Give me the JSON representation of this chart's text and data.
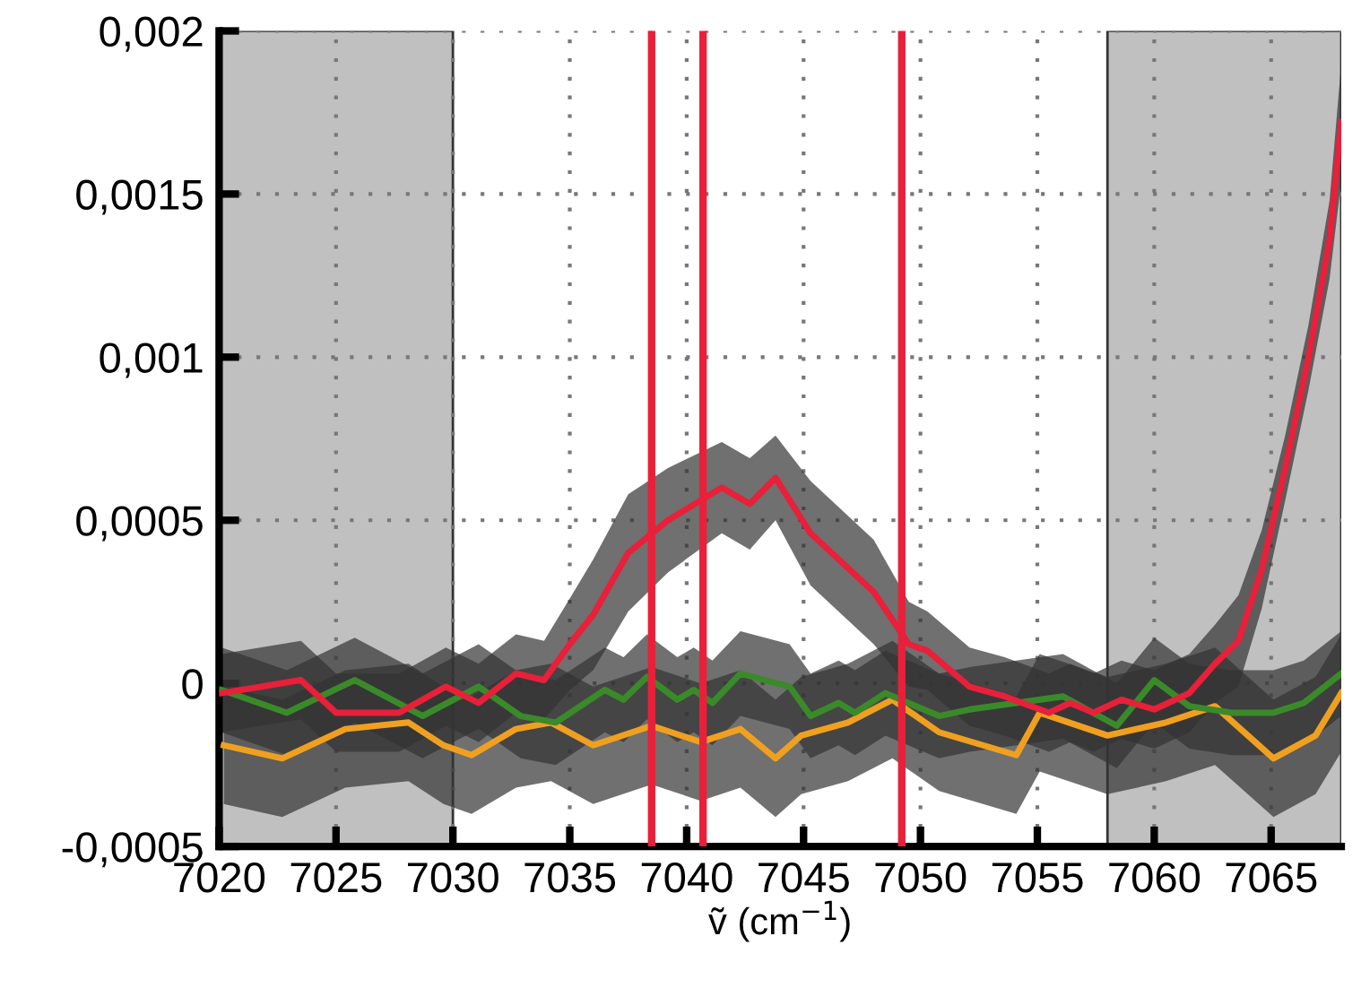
{
  "chart_data": {
    "type": "line",
    "xlabel": "ṽ (cm$^{−1}$)",
    "xlim": [
      7020,
      7068
    ],
    "ylim": [
      -0.0005,
      0.002
    ],
    "xticks": [
      7020,
      7025,
      7030,
      7035,
      7040,
      7045,
      7050,
      7055,
      7060,
      7065
    ],
    "yticks": [
      {
        "value": -0.0005,
        "label": "-0,0005"
      },
      {
        "value": 0,
        "label": "0"
      },
      {
        "value": 0.0005,
        "label": "0,0005"
      },
      {
        "value": 0.001,
        "label": "0,001"
      },
      {
        "value": 0.0015,
        "label": "0,0015"
      },
      {
        "value": 0.002,
        "label": "0,002"
      }
    ],
    "grid": true,
    "legend": false,
    "marker": "none",
    "line_style": "solid",
    "bands": [
      {
        "axis": "x",
        "from": 7020,
        "to": 7030,
        "color": "#c0c0c0"
      },
      {
        "axis": "x",
        "from": 7058,
        "to": 7068,
        "color": "#c0c0c0"
      }
    ],
    "ref_lines": [
      {
        "axis": "x",
        "value": 7038.5,
        "color": "#e8203a"
      },
      {
        "axis": "x",
        "value": 7040.7,
        "color": "#e8203a"
      },
      {
        "axis": "x",
        "value": 7049.2,
        "color": "#e8203a"
      }
    ],
    "series": [
      {
        "color": "#f0a020",
        "x": [
          7020.2,
          7022.7,
          7025.4,
          7028.1,
          7029.6,
          7030.8,
          7032.7,
          7034.2,
          7036.0,
          7038.5,
          7040.6,
          7042.3,
          7043.8,
          7044.9,
          7046.9,
          7048.8,
          7050.8,
          7054.1,
          7055.1,
          7058.0,
          7060.5,
          7062.6,
          7065.1,
          7066.9,
          7068.0
        ],
        "values": [
          -0.00019,
          -0.00023,
          -0.00014,
          -0.00012,
          -0.00019,
          -0.00022,
          -0.00014,
          -0.00012,
          -0.00019,
          -0.00013,
          -0.00018,
          -0.00014,
          -0.00023,
          -0.00016,
          -0.00012,
          -5e-05,
          -0.00015,
          -0.00022,
          -9e-05,
          -0.00016,
          -0.00012,
          -7e-05,
          -0.00023,
          -0.00016,
          -3e-05
        ],
        "lower": [
          -0.00037,
          -0.00041,
          -0.00032,
          -0.0003,
          -0.00037,
          -0.0004,
          -0.00032,
          -0.0003,
          -0.00037,
          -0.00031,
          -0.00036,
          -0.00032,
          -0.00041,
          -0.00034,
          -0.0003,
          -0.00023,
          -0.00033,
          -0.0004,
          -0.00027,
          -0.00034,
          -0.0003,
          -0.00025,
          -0.00041,
          -0.00034,
          -0.00021
        ],
        "upper": [
          -1e-05,
          -5e-05,
          4e-05,
          6e-05,
          -1e-05,
          -4e-05,
          4e-05,
          6e-05,
          -1e-05,
          5e-05,
          0,
          4e-05,
          -5e-05,
          2e-05,
          6e-05,
          0.00013,
          3e-05,
          -4e-05,
          9e-05,
          2e-05,
          6e-05,
          0.00011,
          -5e-05,
          2e-05,
          0.00015
        ]
      },
      {
        "color": "#3a8a2a",
        "x": [
          7020.1,
          7022.9,
          7025.8,
          7028.7,
          7031.1,
          7032.9,
          7034.4,
          7036.5,
          7037.3,
          7038.3,
          7039.6,
          7040.3,
          7041.1,
          7042.3,
          7044.4,
          7045.3,
          7046.5,
          7047.2,
          7048.5,
          7050.8,
          7052.1,
          7056.1,
          7058.4,
          7060.0,
          7061.5,
          7063.3,
          7065.1,
          7066.4,
          7068.0
        ],
        "values": [
          -2e-05,
          -9e-05,
          1e-05,
          -0.0001,
          -1e-05,
          -0.0001,
          -0.00012,
          -2e-05,
          -5e-05,
          2e-05,
          -5e-05,
          -2e-05,
          -6e-05,
          3e-05,
          -1e-05,
          -0.0001,
          -6e-05,
          -9e-05,
          -3e-05,
          -0.0001,
          -8e-05,
          -4e-05,
          -0.00013,
          1e-05,
          -7e-05,
          -9e-05,
          -9e-05,
          -6e-05,
          3e-05
        ],
        "lower": [
          -0.00015,
          -0.00022,
          -0.00012,
          -0.00023,
          -0.00014,
          -0.00023,
          -0.00025,
          -0.00015,
          -0.00018,
          -0.00011,
          -0.00018,
          -0.00015,
          -0.00019,
          -0.0001,
          -0.00014,
          -0.00023,
          -0.00019,
          -0.00022,
          -0.00016,
          -0.00023,
          -0.00021,
          -0.00017,
          -0.00026,
          -0.00012,
          -0.0002,
          -0.00022,
          -0.00022,
          -0.00019,
          -0.0001
        ],
        "upper": [
          0.00011,
          4e-05,
          0.00014,
          3e-05,
          0.00012,
          3e-05,
          1e-05,
          0.00011,
          8e-05,
          0.00015,
          8e-05,
          0.00011,
          7e-05,
          0.00016,
          0.00012,
          3e-05,
          7e-05,
          4e-05,
          0.0001,
          3e-05,
          5e-05,
          9e-05,
          0,
          0.00014,
          6e-05,
          4e-05,
          4e-05,
          7e-05,
          0.00016
        ]
      },
      {
        "color": "#e8203a",
        "x": [
          7020.1,
          7023.5,
          7025.0,
          7027.7,
          7029.7,
          7031.1,
          7032.7,
          7033.9,
          7035.0,
          7036.0,
          7037.5,
          7039.2,
          7041.5,
          7042.7,
          7043.8,
          7045.3,
          7048.0,
          7049.5,
          7050.3,
          7052.1,
          7053.6,
          7055.5,
          7056.4,
          7057.4,
          7058.6,
          7060.0,
          7061.5,
          7062.6,
          7063.6,
          7064.6,
          7065.6,
          7066.6,
          7067.5,
          7068.0
        ],
        "values": [
          -3e-05,
          1e-05,
          -9e-05,
          -9e-05,
          -1e-05,
          -6e-05,
          3e-05,
          1e-05,
          0.00012,
          0.00021,
          0.0004,
          0.0005,
          0.0006,
          0.00055,
          0.00063,
          0.00046,
          0.00028,
          0.00012,
          0.0001,
          -1e-05,
          -4e-05,
          -9e-05,
          -6e-05,
          -9e-05,
          -5e-05,
          -8e-05,
          -3e-05,
          6e-05,
          0.00013,
          0.00035,
          0.00066,
          0.001,
          0.00136,
          0.00172
        ],
        "lower": [
          -0.00015,
          -0.00011,
          -0.00021,
          -0.00021,
          -0.00013,
          -0.00018,
          -9e-05,
          -0.00011,
          -2e-05,
          4e-05,
          0.00022,
          0.00034,
          0.00046,
          0.00041,
          0.0005,
          0.0003,
          0.00012,
          -1e-05,
          -2e-05,
          -0.00013,
          -0.00016,
          -0.00021,
          -0.00018,
          -0.00021,
          -0.00017,
          -0.0002,
          -0.00015,
          -6e-05,
          -1e-05,
          0.00023,
          0.00056,
          0.0009,
          0.00124,
          0.00154
        ],
        "upper": [
          9e-05,
          0.00013,
          3e-05,
          3e-05,
          0.00011,
          6e-05,
          0.00015,
          0.00013,
          0.00026,
          0.00038,
          0.00058,
          0.00066,
          0.00074,
          0.00069,
          0.00076,
          0.00062,
          0.00044,
          0.00025,
          0.00022,
          0.00011,
          8e-05,
          3e-05,
          6e-05,
          3e-05,
          7e-05,
          4e-05,
          9e-05,
          0.00018,
          0.00027,
          0.00047,
          0.00076,
          0.0011,
          0.00148,
          0.0019
        ]
      }
    ]
  }
}
